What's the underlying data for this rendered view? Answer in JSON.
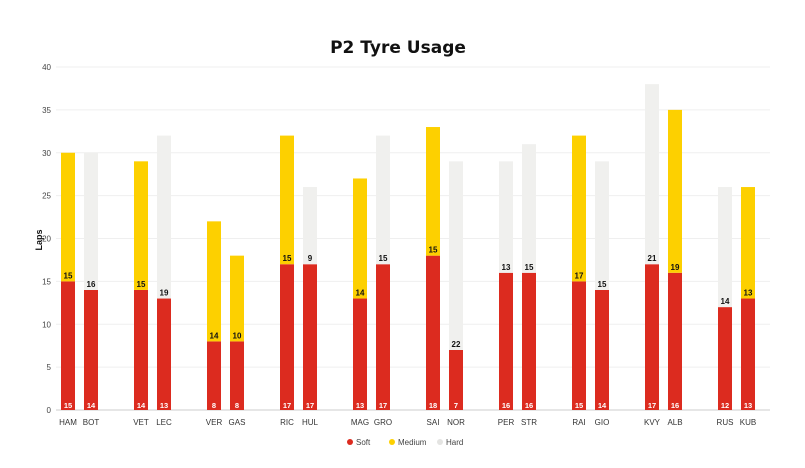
{
  "chart_data": {
    "type": "bar",
    "stacked": true,
    "title": "P2 Tyre Usage",
    "ylabel": "Laps",
    "xlabel": "",
    "ylim": [
      0,
      40
    ],
    "yticks": [
      0,
      5,
      10,
      15,
      20,
      25,
      30,
      35,
      40
    ],
    "grid": true,
    "legend_position": "bottom-center",
    "categories": [
      "HAM",
      "BOT",
      "VET",
      "LEC",
      "VER",
      "GAS",
      "RIC",
      "HUL",
      "MAG",
      "GRO",
      "SAI",
      "NOR",
      "PER",
      "STR",
      "RAI",
      "GIO",
      "KVY",
      "ALB",
      "RUS",
      "KUB"
    ],
    "series": [
      {
        "name": "Soft",
        "color": "#dc2b1f",
        "values": [
          15,
          14,
          14,
          13,
          8,
          8,
          17,
          17,
          13,
          17,
          18,
          7,
          16,
          16,
          15,
          14,
          17,
          16,
          12,
          13
        ]
      },
      {
        "name": "Medium",
        "color": "#fdd000",
        "values": [
          15,
          0,
          15,
          0,
          14,
          10,
          15,
          0,
          14,
          0,
          15,
          0,
          0,
          0,
          17,
          0,
          0,
          19,
          0,
          13
        ]
      },
      {
        "name": "Hard",
        "color": "#f0f0ee",
        "values": [
          0,
          16,
          0,
          19,
          0,
          0,
          0,
          9,
          0,
          15,
          0,
          22,
          13,
          15,
          0,
          15,
          21,
          0,
          14,
          0
        ]
      }
    ]
  }
}
